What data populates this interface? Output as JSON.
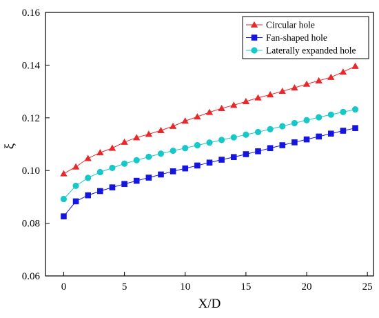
{
  "chart_data": {
    "type": "line",
    "xlabel": "X/D",
    "ylabel": "ξ",
    "xlim": [
      -1.5,
      25.5
    ],
    "ylim": [
      0.06,
      0.16
    ],
    "xticks": [
      0,
      5,
      10,
      15,
      20,
      25
    ],
    "yticks": [
      0.06,
      0.08,
      0.1,
      0.12,
      0.14,
      0.16
    ],
    "xtick_labels": [
      "0",
      "5",
      "10",
      "15",
      "20",
      "25"
    ],
    "ytick_labels": [
      "0.06",
      "0.08",
      "0.10",
      "0.12",
      "0.14",
      "0.16"
    ],
    "grid": false,
    "legend_position": "top-right",
    "x": [
      0,
      1,
      2,
      3,
      4,
      5,
      6,
      7,
      8,
      9,
      10,
      11,
      12,
      13,
      14,
      15,
      16,
      17,
      18,
      19,
      20,
      21,
      22,
      23,
      24
    ],
    "series": [
      {
        "name": "Circular hole",
        "color": "#e8292b",
        "marker": "triangle",
        "values": [
          0.0988,
          0.1014,
          0.1046,
          0.1068,
          0.1085,
          0.1108,
          0.1125,
          0.1138,
          0.1152,
          0.1168,
          0.1188,
          0.1204,
          0.1221,
          0.1236,
          0.1248,
          0.1262,
          0.1276,
          0.1288,
          0.1301,
          0.1314,
          0.1328,
          0.1341,
          0.1354,
          0.1374,
          0.1396
        ]
      },
      {
        "name": "Fan-shaped hole",
        "color": "#1515e0",
        "marker": "square",
        "values": [
          0.0826,
          0.0883,
          0.0906,
          0.0922,
          0.0936,
          0.0949,
          0.0961,
          0.0973,
          0.0985,
          0.0997,
          0.1008,
          0.1019,
          0.103,
          0.1041,
          0.1051,
          0.1062,
          0.1073,
          0.1085,
          0.1096,
          0.1107,
          0.1118,
          0.1129,
          0.114,
          0.1151,
          0.1161
        ]
      },
      {
        "name": "Laterally expanded hole",
        "color": "#18c8c8",
        "marker": "circle",
        "values": [
          0.0892,
          0.0942,
          0.0972,
          0.0994,
          0.101,
          0.1026,
          0.1039,
          0.1052,
          0.1064,
          0.1075,
          0.1085,
          0.1096,
          0.1106,
          0.1116,
          0.1126,
          0.1136,
          0.1146,
          0.1157,
          0.1168,
          0.118,
          0.1191,
          0.1202,
          0.1212,
          0.1222,
          0.1232
        ]
      }
    ]
  }
}
